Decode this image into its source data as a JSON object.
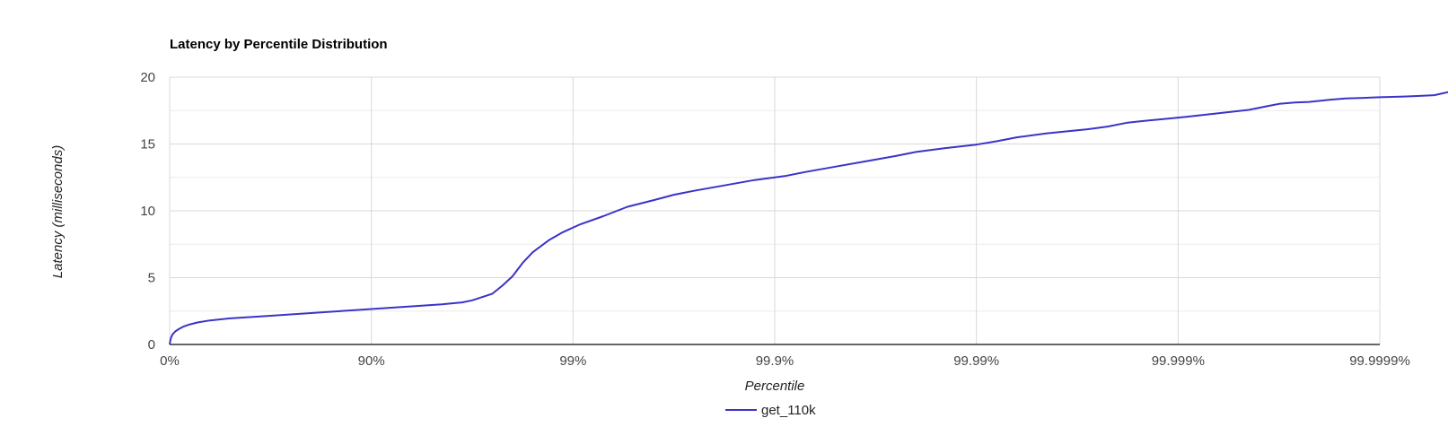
{
  "chart_data": {
    "type": "line",
    "title": "Latency by Percentile Distribution",
    "xlabel": "Percentile",
    "ylabel": "Latency (milliseconds)",
    "x_scale": "log-inverse (1 - percentile)",
    "x_ticks": [
      "0%",
      "90%",
      "99%",
      "99.9%",
      "99.99%",
      "99.999%",
      "99.9999%"
    ],
    "y_ticks": [
      0,
      5,
      10,
      15,
      20
    ],
    "ylim": [
      0,
      20
    ],
    "grid": true,
    "legend_position": "bottom",
    "colors": {
      "series": "#3b33c8",
      "grid": "#d9d9d9",
      "axis": "#333333"
    },
    "series": [
      {
        "name": "get_110k",
        "points": [
          [
            0,
            0.0
          ],
          [
            0.004,
            0.35
          ],
          [
            0.008,
            0.55
          ],
          [
            0.013,
            0.72
          ],
          [
            0.02,
            0.85
          ],
          [
            0.03,
            1.0
          ],
          [
            0.045,
            1.15
          ],
          [
            0.07,
            1.35
          ],
          [
            0.1,
            1.5
          ],
          [
            0.14,
            1.65
          ],
          [
            0.2,
            1.8
          ],
          [
            0.3,
            1.95
          ],
          [
            0.45,
            2.1
          ],
          [
            0.6,
            2.25
          ],
          [
            0.75,
            2.4
          ],
          [
            0.9,
            2.55
          ],
          [
            1.05,
            2.7
          ],
          [
            1.2,
            2.85
          ],
          [
            1.35,
            3.0
          ],
          [
            1.45,
            3.15
          ],
          [
            1.5,
            3.3
          ],
          [
            1.6,
            3.8
          ],
          [
            1.65,
            4.4
          ],
          [
            1.7,
            5.1
          ],
          [
            1.75,
            6.1
          ],
          [
            1.8,
            6.9
          ],
          [
            1.88,
            7.8
          ],
          [
            1.95,
            8.4
          ],
          [
            2.03,
            8.95
          ],
          [
            2.15,
            9.6
          ],
          [
            2.27,
            10.3
          ],
          [
            2.4,
            10.8
          ],
          [
            2.5,
            11.2
          ],
          [
            2.6,
            11.5
          ],
          [
            2.75,
            11.9
          ],
          [
            2.9,
            12.3
          ],
          [
            3.05,
            12.6
          ],
          [
            3.15,
            12.9
          ],
          [
            3.3,
            13.3
          ],
          [
            3.45,
            13.7
          ],
          [
            3.6,
            14.1
          ],
          [
            3.7,
            14.4
          ],
          [
            3.85,
            14.7
          ],
          [
            4.0,
            14.95
          ],
          [
            4.1,
            15.2
          ],
          [
            4.2,
            15.5
          ],
          [
            4.35,
            15.8
          ],
          [
            4.55,
            16.1
          ],
          [
            4.65,
            16.3
          ],
          [
            4.75,
            16.6
          ],
          [
            4.85,
            16.75
          ],
          [
            4.95,
            16.9
          ],
          [
            5.05,
            17.05
          ],
          [
            5.2,
            17.3
          ],
          [
            5.35,
            17.55
          ],
          [
            5.45,
            17.85
          ],
          [
            5.5,
            18.0
          ],
          [
            5.58,
            18.1
          ],
          [
            5.65,
            18.15
          ],
          [
            5.75,
            18.3
          ],
          [
            5.83,
            18.4
          ],
          [
            5.92,
            18.45
          ],
          [
            6.0,
            18.5
          ],
          [
            6.12,
            18.55
          ],
          [
            6.2,
            18.6
          ],
          [
            6.27,
            18.65
          ],
          [
            6.3,
            18.75
          ],
          [
            6.37,
            18.98
          ],
          [
            6.45,
            19.0
          ],
          [
            6.5,
            19.0
          ]
        ]
      }
    ]
  }
}
